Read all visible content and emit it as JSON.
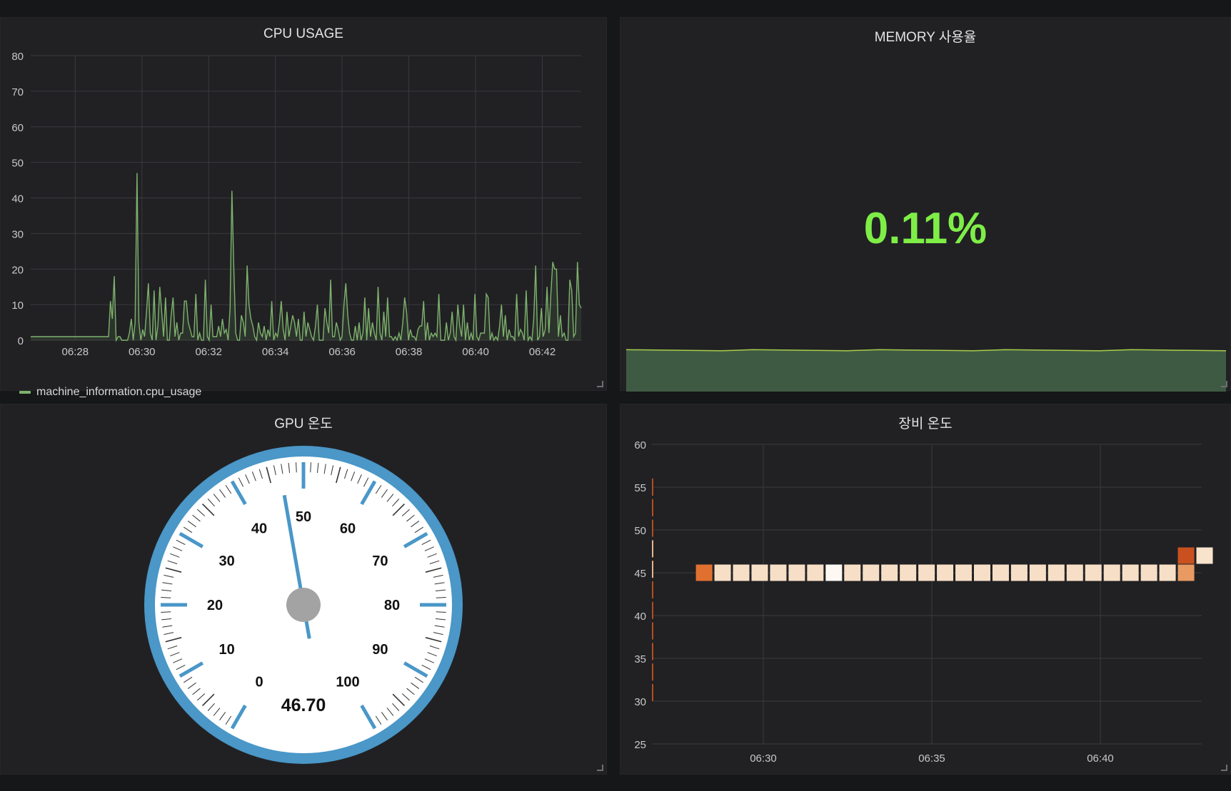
{
  "panels": {
    "cpu": {
      "title": "CPU USAGE",
      "legend": "machine_information.cpu_usage"
    },
    "memory": {
      "title": "MEMORY 사용율",
      "value": "0.11%"
    },
    "gpu": {
      "title": "GPU 온도",
      "value": "46.70"
    },
    "device": {
      "title": "장비 온도"
    }
  },
  "colors": {
    "cpu_line": "#7eb26d",
    "memory_value": "#7eee47",
    "gauge_ring": "#4a97c8",
    "gauge_needle": "#4a97c8"
  },
  "chart_data": [
    {
      "type": "line",
      "name": "cpu",
      "title": "CPU USAGE",
      "ylim": [
        0,
        80
      ],
      "yticks": [
        0,
        10,
        20,
        30,
        40,
        50,
        60,
        70,
        80
      ],
      "xlim": [
        "06:26:40",
        "06:43:10"
      ],
      "xticks": [
        "06:28",
        "06:30",
        "06:32",
        "06:34",
        "06:36",
        "06:38",
        "06:40",
        "06:42"
      ],
      "grid": true,
      "legend_position": "bottom-left",
      "series": [
        {
          "name": "machine_information.cpu_usage",
          "values": [
            1,
            1,
            1,
            1,
            1,
            1,
            1,
            1,
            1,
            1,
            1,
            1,
            1,
            1,
            1,
            1,
            1,
            1,
            1,
            1,
            1,
            1,
            1,
            1,
            1,
            1,
            1,
            1,
            1,
            1,
            1,
            1,
            1,
            1,
            1,
            1,
            1,
            1,
            1,
            1,
            1,
            1,
            11,
            6,
            18,
            0,
            1,
            1,
            0,
            0,
            0,
            0,
            2,
            6,
            0,
            5,
            47,
            5,
            0,
            3,
            1,
            8,
            16,
            2,
            0,
            14,
            0,
            4,
            15,
            8,
            1,
            12,
            0,
            0,
            7,
            12,
            1,
            5,
            0,
            2,
            2,
            11,
            11,
            5,
            3,
            1,
            1,
            13,
            0,
            2,
            0,
            0,
            17,
            1,
            0,
            10,
            1,
            1,
            1,
            4,
            1,
            6,
            2,
            3,
            0,
            9,
            42,
            20,
            2,
            0,
            0,
            7,
            5,
            1,
            21,
            10,
            6,
            4,
            1,
            0,
            5,
            2,
            1,
            4,
            0,
            3,
            1,
            11,
            0,
            2,
            1,
            5,
            11,
            3,
            0,
            8,
            1,
            4,
            7,
            5,
            1,
            6,
            0,
            0,
            8,
            1,
            5,
            3,
            1,
            0,
            4,
            10,
            0,
            0,
            0,
            9,
            5,
            2,
            17,
            1,
            1,
            5,
            3,
            0,
            1,
            10,
            16,
            7,
            2,
            0,
            0,
            4,
            0,
            5,
            0,
            2,
            12,
            0,
            9,
            1,
            5,
            2,
            0,
            15,
            2,
            0,
            8,
            1,
            12,
            1,
            1,
            0,
            1,
            0,
            2,
            0,
            5,
            12,
            8,
            0,
            3,
            1,
            1,
            0,
            3,
            4,
            4,
            11,
            0,
            5,
            0,
            2,
            1,
            2,
            1,
            13,
            0,
            0,
            0,
            5,
            0,
            2,
            8,
            1,
            0,
            10,
            4,
            1,
            10,
            0,
            5,
            0,
            2,
            0,
            13,
            1,
            0,
            2,
            2,
            2,
            13,
            12,
            0,
            2,
            0,
            1,
            0,
            4,
            10,
            1,
            7,
            0,
            3,
            1,
            1,
            0,
            13,
            1,
            3,
            2,
            0,
            14,
            0,
            1,
            0,
            6,
            21,
            0,
            1,
            9,
            1,
            3,
            15,
            2,
            13,
            22,
            20,
            20,
            1,
            7,
            1,
            2,
            0,
            0,
            17,
            14,
            1,
            2,
            22,
            10,
            9
          ]
        }
      ]
    },
    {
      "type": "area",
      "name": "memory",
      "title": "MEMORY 사용율",
      "series": [
        {
          "values": [
            0.11,
            0.11,
            0.11,
            0.11,
            0.11,
            0.11,
            0.11,
            0.11,
            0.11,
            0.11,
            0.11,
            0.11,
            0.11,
            0.11,
            0.11,
            0.11,
            0.11,
            0.11,
            0.11,
            0.11
          ]
        }
      ]
    },
    {
      "type": "gauge",
      "name": "gpu",
      "title": "GPU 온도",
      "value": 46.7,
      "min": 0,
      "max": 100,
      "ticks": [
        0,
        10,
        20,
        30,
        40,
        50,
        60,
        70,
        80,
        90,
        100
      ],
      "value_label": "46.70"
    },
    {
      "type": "heatmap",
      "name": "device",
      "title": "장비 온도",
      "ylim": [
        25,
        60
      ],
      "yticks": [
        25,
        30,
        35,
        40,
        45,
        50,
        55,
        60
      ],
      "xticks": [
        "06:30",
        "06:35",
        "06:40"
      ],
      "grid": true,
      "cells": [
        {
          "x": "06:28:00",
          "y": 45,
          "color": "#e0702f"
        },
        {
          "x": "06:28:33",
          "y": 45,
          "color": "#f6dfc6"
        },
        {
          "x": "06:29:06",
          "y": 45,
          "color": "#f6dfc6"
        },
        {
          "x": "06:29:39",
          "y": 45,
          "color": "#f6dfc6"
        },
        {
          "x": "06:30:12",
          "y": 45,
          "color": "#f6dfc6"
        },
        {
          "x": "06:30:45",
          "y": 45,
          "color": "#f6dfc6"
        },
        {
          "x": "06:31:18",
          "y": 45,
          "color": "#f6dfc6"
        },
        {
          "x": "06:31:51",
          "y": 45,
          "color": "#fdf8f2"
        },
        {
          "x": "06:32:24",
          "y": 45,
          "color": "#f6dfc6"
        },
        {
          "x": "06:32:57",
          "y": 45,
          "color": "#f6dfc6"
        },
        {
          "x": "06:33:30",
          "y": 45,
          "color": "#f6dfc6"
        },
        {
          "x": "06:34:03",
          "y": 45,
          "color": "#f6dfc6"
        },
        {
          "x": "06:34:36",
          "y": 45,
          "color": "#f6dfc6"
        },
        {
          "x": "06:35:09",
          "y": 45,
          "color": "#f6dfc6"
        },
        {
          "x": "06:35:42",
          "y": 45,
          "color": "#f6dfc6"
        },
        {
          "x": "06:36:15",
          "y": 45,
          "color": "#f6dfc6"
        },
        {
          "x": "06:36:48",
          "y": 45,
          "color": "#f6dfc6"
        },
        {
          "x": "06:37:21",
          "y": 45,
          "color": "#f6dfc6"
        },
        {
          "x": "06:37:54",
          "y": 45,
          "color": "#f6dfc6"
        },
        {
          "x": "06:38:27",
          "y": 45,
          "color": "#f6dfc6"
        },
        {
          "x": "06:39:00",
          "y": 45,
          "color": "#f6dfc6"
        },
        {
          "x": "06:39:33",
          "y": 45,
          "color": "#f6dfc6"
        },
        {
          "x": "06:40:06",
          "y": 45,
          "color": "#f6dfc6"
        },
        {
          "x": "06:40:39",
          "y": 45,
          "color": "#f6dfc6"
        },
        {
          "x": "06:41:12",
          "y": 45,
          "color": "#f6dfc6"
        },
        {
          "x": "06:41:45",
          "y": 45,
          "color": "#f6dfc6"
        },
        {
          "x": "06:42:18",
          "y": 45,
          "color": "#e89a62"
        },
        {
          "x": "06:42:18",
          "y": 47,
          "color": "#c9511f"
        },
        {
          "x": "06:42:51",
          "y": 47,
          "color": "#f8e3cc"
        }
      ]
    }
  ]
}
